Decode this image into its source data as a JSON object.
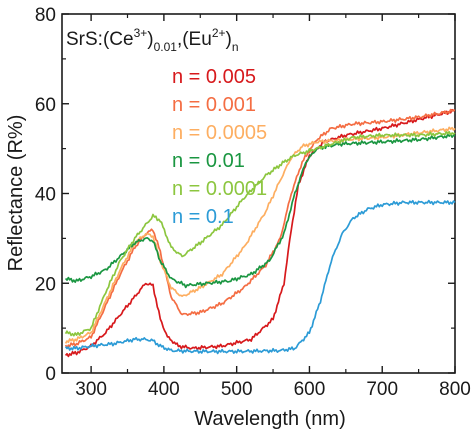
{
  "chart_data": {
    "type": "line",
    "title": {
      "base": "SrS:(Ce",
      "ce_sup": "3+",
      "mid": ")",
      "ce_sub": "0.01",
      "comma": ",(Eu",
      "eu_sup": "2+",
      "end": ")",
      "eu_sub": "n"
    },
    "xlabel": "Wavelength (nm)",
    "ylabel": "Reflectance (R%)",
    "xlim": [
      260,
      800
    ],
    "ylim": [
      0,
      80
    ],
    "x_ticks": [
      "300",
      "400",
      "500",
      "600",
      "700",
      "800"
    ],
    "y_ticks": [
      "0",
      "20",
      "40",
      "60",
      "80"
    ],
    "grid": false,
    "legend_placement": "upper-center",
    "series": [
      {
        "name": "n = 0.005",
        "color": "#d7191c",
        "points": [
          [
            265,
            4
          ],
          [
            280,
            4.5
          ],
          [
            300,
            6
          ],
          [
            320,
            9
          ],
          [
            340,
            13
          ],
          [
            360,
            17
          ],
          [
            375,
            20
          ],
          [
            385,
            19.5
          ],
          [
            395,
            12
          ],
          [
            405,
            8
          ],
          [
            420,
            6
          ],
          [
            440,
            5.5
          ],
          [
            480,
            6
          ],
          [
            520,
            7.5
          ],
          [
            550,
            12
          ],
          [
            565,
            20
          ],
          [
            575,
            32
          ],
          [
            585,
            42
          ],
          [
            600,
            48.5
          ],
          [
            620,
            51.5
          ],
          [
            650,
            53
          ],
          [
            700,
            54.5
          ],
          [
            750,
            56.5
          ],
          [
            800,
            58.5
          ]
        ]
      },
      {
        "name": "n = 0.001",
        "color": "#f46d43",
        "points": [
          [
            265,
            6
          ],
          [
            280,
            6.5
          ],
          [
            300,
            8
          ],
          [
            320,
            15
          ],
          [
            340,
            22
          ],
          [
            360,
            28
          ],
          [
            375,
            31
          ],
          [
            385,
            32
          ],
          [
            395,
            27
          ],
          [
            410,
            17
          ],
          [
            425,
            13
          ],
          [
            450,
            13.5
          ],
          [
            480,
            15.5
          ],
          [
            510,
            19
          ],
          [
            540,
            24
          ],
          [
            560,
            30
          ],
          [
            575,
            40
          ],
          [
            590,
            47
          ],
          [
            610,
            52
          ],
          [
            630,
            54.5
          ],
          [
            660,
            55.5
          ],
          [
            700,
            56
          ],
          [
            750,
            57
          ],
          [
            800,
            58.5
          ]
        ]
      },
      {
        "name": "n = 0.0005",
        "color": "#fdae61",
        "points": [
          [
            265,
            7
          ],
          [
            280,
            7.5
          ],
          [
            300,
            9
          ],
          [
            320,
            16
          ],
          [
            340,
            23
          ],
          [
            360,
            29
          ],
          [
            375,
            31
          ],
          [
            385,
            30.5
          ],
          [
            395,
            25
          ],
          [
            410,
            19
          ],
          [
            425,
            17
          ],
          [
            450,
            19
          ],
          [
            480,
            22
          ],
          [
            510,
            28
          ],
          [
            540,
            36
          ],
          [
            560,
            43
          ],
          [
            575,
            48
          ],
          [
            590,
            50.5
          ],
          [
            610,
            51.5
          ],
          [
            650,
            52
          ],
          [
            700,
            52.5
          ],
          [
            750,
            53.5
          ],
          [
            800,
            54.5
          ]
        ]
      },
      {
        "name": "n = 0.01",
        "color": "#1a9641",
        "points": [
          [
            265,
            21
          ],
          [
            280,
            20.5
          ],
          [
            300,
            21.5
          ],
          [
            320,
            23
          ],
          [
            340,
            26
          ],
          [
            360,
            29
          ],
          [
            375,
            30
          ],
          [
            385,
            29.5
          ],
          [
            395,
            25
          ],
          [
            410,
            21
          ],
          [
            430,
            19.5
          ],
          [
            460,
            20
          ],
          [
            490,
            20.5
          ],
          [
            520,
            22
          ],
          [
            545,
            25
          ],
          [
            565,
            31
          ],
          [
            580,
            40
          ],
          [
            595,
            47
          ],
          [
            610,
            50
          ],
          [
            640,
            51
          ],
          [
            700,
            51.5
          ],
          [
            750,
            52
          ],
          [
            800,
            53
          ]
        ]
      },
      {
        "name": "n = 0.0001",
        "color": "#8cc63f",
        "points": [
          [
            265,
            9
          ],
          [
            280,
            8.5
          ],
          [
            300,
            10
          ],
          [
            320,
            18
          ],
          [
            340,
            25
          ],
          [
            360,
            30
          ],
          [
            375,
            33
          ],
          [
            385,
            35
          ],
          [
            395,
            34
          ],
          [
            410,
            28
          ],
          [
            425,
            26
          ],
          [
            450,
            29
          ],
          [
            480,
            33
          ],
          [
            510,
            39
          ],
          [
            540,
            44
          ],
          [
            565,
            47
          ],
          [
            580,
            48.5
          ],
          [
            600,
            49.5
          ],
          [
            630,
            51
          ],
          [
            660,
            52.5
          ],
          [
            700,
            53
          ],
          [
            750,
            53
          ],
          [
            800,
            53.5
          ]
        ]
      },
      {
        "name": "n = 0.1",
        "color": "#2c9bd6",
        "points": [
          [
            265,
            5.5
          ],
          [
            280,
            5.5
          ],
          [
            300,
            6
          ],
          [
            330,
            6.5
          ],
          [
            360,
            7.5
          ],
          [
            375,
            7.5
          ],
          [
            385,
            7.2
          ],
          [
            395,
            6
          ],
          [
            410,
            5
          ],
          [
            450,
            4.8
          ],
          [
            500,
            4.8
          ],
          [
            560,
            5
          ],
          [
            580,
            5.5
          ],
          [
            600,
            9
          ],
          [
            615,
            16
          ],
          [
            630,
            25
          ],
          [
            645,
            31
          ],
          [
            660,
            34.5
          ],
          [
            680,
            36.5
          ],
          [
            700,
            37.5
          ],
          [
            730,
            38
          ],
          [
            760,
            38
          ],
          [
            800,
            38
          ]
        ]
      }
    ]
  }
}
